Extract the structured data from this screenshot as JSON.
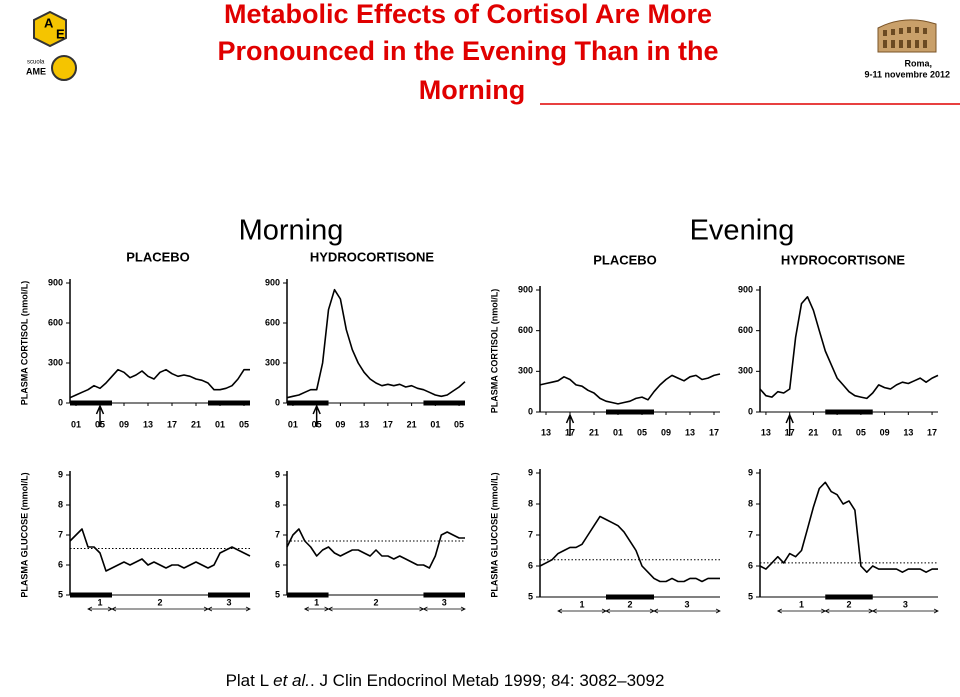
{
  "header": {
    "title_lines": [
      "Metabolic Effects of Cortisol Are More",
      "Pronounced in the Evening Than in the",
      "Morning"
    ],
    "logo": {
      "letters": [
        "A",
        "E"
      ],
      "school": "scuola",
      "brand": "AME"
    },
    "place": "Roma,",
    "date": "9-11 novembre 2012"
  },
  "panel_labels": [
    "Morning",
    "Evening"
  ],
  "citation": [
    "Plat L ",
    "et al.",
    ". J Clin Endocrinol Metab 1999; 84: 3082–3092"
  ],
  "chart_data": [
    {
      "type": "line",
      "title": "PLACEBO",
      "ylabel": "PLASMA CORTISOL (nmol/L)",
      "color": "#000000",
      "x": [
        -1,
        0,
        1,
        2,
        3,
        4,
        5,
        6,
        7,
        8,
        9,
        10,
        11,
        12,
        13,
        14,
        15,
        16,
        17,
        18,
        19,
        20,
        21,
        22,
        23,
        24,
        25,
        26,
        27,
        28,
        29
      ],
      "values": [
        40,
        60,
        80,
        100,
        130,
        110,
        150,
        200,
        250,
        230,
        190,
        210,
        240,
        200,
        180,
        230,
        250,
        220,
        200,
        210,
        200,
        180,
        170,
        150,
        100,
        100,
        110,
        130,
        180,
        250,
        250
      ],
      "xlim": [
        -1,
        29
      ],
      "ylim": [
        0,
        900
      ],
      "yticks": [
        0,
        300,
        600,
        900
      ],
      "xticks": [
        {
          "value": 0,
          "label": "01"
        },
        {
          "value": 4,
          "label": "05"
        },
        {
          "value": 8,
          "label": "09"
        },
        {
          "value": 12,
          "label": "13"
        },
        {
          "value": 16,
          "label": "17"
        },
        {
          "value": 20,
          "label": "21"
        },
        {
          "value": 24,
          "label": "01"
        },
        {
          "value": 28,
          "label": "05"
        }
      ],
      "sleep": [
        [
          -1,
          6
        ],
        [
          22,
          29
        ]
      ],
      "injection": 4
    },
    {
      "type": "line",
      "title": "HYDROCORTISONE",
      "color": "#000000",
      "x": [
        -1,
        0,
        1,
        2,
        3,
        4,
        5,
        6,
        7,
        8,
        9,
        10,
        11,
        12,
        13,
        14,
        15,
        16,
        17,
        18,
        19,
        20,
        21,
        22,
        23,
        24,
        25,
        26,
        27,
        28,
        29
      ],
      "values": [
        40,
        50,
        60,
        80,
        100,
        100,
        300,
        700,
        850,
        780,
        550,
        400,
        300,
        230,
        180,
        150,
        130,
        140,
        130,
        140,
        120,
        130,
        110,
        100,
        80,
        60,
        50,
        60,
        90,
        120,
        160
      ],
      "xlim": [
        -1,
        29
      ],
      "ylim": [
        0,
        900
      ],
      "yticks": [
        0,
        300,
        600,
        900
      ],
      "xticks": [
        {
          "value": 0,
          "label": "01"
        },
        {
          "value": 4,
          "label": "05"
        },
        {
          "value": 8,
          "label": "09"
        },
        {
          "value": 12,
          "label": "13"
        },
        {
          "value": 16,
          "label": "17"
        },
        {
          "value": 20,
          "label": "21"
        },
        {
          "value": 24,
          "label": "01"
        },
        {
          "value": 28,
          "label": "05"
        }
      ],
      "sleep": [
        [
          -1,
          6
        ],
        [
          22,
          29
        ]
      ],
      "injection": 4
    },
    {
      "type": "line",
      "title": "PLACEBO",
      "ylabel": "PLASMA CORTISOL (nmol/L)",
      "color": "#000000",
      "x": [
        -1,
        0,
        1,
        2,
        3,
        4,
        5,
        6,
        7,
        8,
        9,
        10,
        11,
        12,
        13,
        14,
        15,
        16,
        17,
        18,
        19,
        20,
        21,
        22,
        23,
        24,
        25,
        26,
        27,
        28,
        29
      ],
      "values": [
        200,
        210,
        220,
        230,
        260,
        240,
        200,
        190,
        160,
        140,
        100,
        80,
        70,
        60,
        70,
        80,
        100,
        110,
        90,
        150,
        200,
        240,
        270,
        250,
        230,
        260,
        270,
        240,
        250,
        270,
        280
      ],
      "xlim": [
        -1,
        29
      ],
      "ylim": [
        0,
        900
      ],
      "yticks": [
        0,
        300,
        600,
        900
      ],
      "xticks": [
        {
          "value": 0,
          "label": "13"
        },
        {
          "value": 4,
          "label": "17"
        },
        {
          "value": 8,
          "label": "21"
        },
        {
          "value": 12,
          "label": "01"
        },
        {
          "value": 16,
          "label": "05"
        },
        {
          "value": 20,
          "label": "09"
        },
        {
          "value": 24,
          "label": "13"
        },
        {
          "value": 28,
          "label": "17"
        }
      ],
      "sleep": [
        [
          10,
          18
        ]
      ],
      "injection": 4
    },
    {
      "type": "line",
      "title": "HYDROCORTISONE",
      "color": "#000000",
      "x": [
        -1,
        0,
        1,
        2,
        3,
        4,
        5,
        6,
        7,
        8,
        9,
        10,
        11,
        12,
        13,
        14,
        15,
        16,
        17,
        18,
        19,
        20,
        21,
        22,
        23,
        24,
        25,
        26,
        27,
        28,
        29
      ],
      "values": [
        170,
        120,
        110,
        150,
        140,
        170,
        550,
        800,
        850,
        750,
        600,
        450,
        350,
        250,
        200,
        150,
        120,
        110,
        100,
        140,
        200,
        180,
        170,
        200,
        220,
        210,
        230,
        250,
        220,
        250,
        270
      ],
      "xlim": [
        -1,
        29
      ],
      "ylim": [
        0,
        900
      ],
      "yticks": [
        0,
        300,
        600,
        900
      ],
      "xticks": [
        {
          "value": 0,
          "label": "13"
        },
        {
          "value": 4,
          "label": "17"
        },
        {
          "value": 8,
          "label": "21"
        },
        {
          "value": 12,
          "label": "01"
        },
        {
          "value": 16,
          "label": "05"
        },
        {
          "value": 20,
          "label": "09"
        },
        {
          "value": 24,
          "label": "13"
        },
        {
          "value": 28,
          "label": "17"
        }
      ],
      "sleep": [
        [
          10,
          18
        ]
      ],
      "injection": 4
    },
    {
      "type": "line",
      "ylabel": "PLASMA GLUCOSE (mmol/L)",
      "color": "#000000",
      "x": [
        -1,
        0,
        1,
        2,
        3,
        4,
        5,
        6,
        7,
        8,
        9,
        10,
        11,
        12,
        13,
        14,
        15,
        16,
        17,
        18,
        19,
        20,
        21,
        22,
        23,
        24,
        25,
        26,
        27,
        28,
        29
      ],
      "values": [
        6.8,
        7.0,
        7.2,
        6.6,
        6.6,
        6.4,
        5.8,
        5.9,
        6.0,
        6.1,
        6.0,
        6.1,
        6.2,
        6.0,
        6.1,
        6.0,
        5.9,
        6.0,
        6.0,
        5.9,
        6.0,
        6.1,
        6.0,
        5.9,
        6.0,
        6.4,
        6.5,
        6.6,
        6.5,
        6.4,
        6.3
      ],
      "xlim": [
        -1,
        29
      ],
      "ylim": [
        5,
        9
      ],
      "yticks": [
        5,
        6,
        7,
        8,
        9
      ],
      "reference": 6.55,
      "sleep": [
        [
          -1,
          6
        ],
        [
          22,
          29
        ]
      ],
      "periods": [
        {
          "label": "1",
          "range": [
            2,
            6
          ]
        },
        {
          "label": "2",
          "range": [
            6,
            22
          ]
        },
        {
          "label": "3",
          "range": [
            22,
            29
          ]
        }
      ]
    },
    {
      "type": "line",
      "color": "#000000",
      "x": [
        -1,
        0,
        1,
        2,
        3,
        4,
        5,
        6,
        7,
        8,
        9,
        10,
        11,
        12,
        13,
        14,
        15,
        16,
        17,
        18,
        19,
        20,
        21,
        22,
        23,
        24,
        25,
        26,
        27,
        28,
        29
      ],
      "values": [
        6.6,
        7.0,
        7.2,
        6.8,
        6.6,
        6.3,
        6.5,
        6.6,
        6.4,
        6.3,
        6.4,
        6.5,
        6.5,
        6.4,
        6.3,
        6.5,
        6.3,
        6.3,
        6.2,
        6.3,
        6.2,
        6.1,
        6.0,
        6.0,
        5.9,
        6.3,
        7.0,
        7.1,
        7.0,
        6.9,
        6.9
      ],
      "xlim": [
        -1,
        29
      ],
      "ylim": [
        5,
        9
      ],
      "yticks": [
        5,
        6,
        7,
        8,
        9
      ],
      "reference": 6.8,
      "sleep": [
        [
          -1,
          6
        ],
        [
          22,
          29
        ]
      ],
      "periods": [
        {
          "label": "1",
          "range": [
            2,
            6
          ]
        },
        {
          "label": "2",
          "range": [
            6,
            22
          ]
        },
        {
          "label": "3",
          "range": [
            22,
            29
          ]
        }
      ]
    },
    {
      "type": "line",
      "ylabel": "PLASMA GLUCOSE (mmol/L)",
      "color": "#000000",
      "x": [
        -1,
        0,
        1,
        2,
        3,
        4,
        5,
        6,
        7,
        8,
        9,
        10,
        11,
        12,
        13,
        14,
        15,
        16,
        17,
        18,
        19,
        20,
        21,
        22,
        23,
        24,
        25,
        26,
        27,
        28,
        29
      ],
      "values": [
        6.0,
        6.1,
        6.2,
        6.4,
        6.5,
        6.6,
        6.6,
        6.7,
        7.0,
        7.3,
        7.6,
        7.5,
        7.4,
        7.3,
        7.1,
        6.8,
        6.5,
        6.0,
        5.8,
        5.6,
        5.5,
        5.5,
        5.6,
        5.5,
        5.5,
        5.6,
        5.6,
        5.5,
        5.6,
        5.6,
        5.6
      ],
      "xlim": [
        -1,
        29
      ],
      "ylim": [
        5,
        9
      ],
      "yticks": [
        5,
        6,
        7,
        8,
        9
      ],
      "reference": 6.2,
      "sleep": [
        [
          10,
          18
        ]
      ],
      "periods": [
        {
          "label": "1",
          "range": [
            2,
            10
          ]
        },
        {
          "label": "2",
          "range": [
            10,
            18
          ]
        },
        {
          "label": "3",
          "range": [
            18,
            29
          ]
        }
      ]
    },
    {
      "type": "line",
      "color": "#000000",
      "x": [
        -1,
        0,
        1,
        2,
        3,
        4,
        5,
        6,
        7,
        8,
        9,
        10,
        11,
        12,
        13,
        14,
        15,
        16,
        17,
        18,
        19,
        20,
        21,
        22,
        23,
        24,
        25,
        26,
        27,
        28,
        29
      ],
      "values": [
        6.0,
        5.9,
        6.1,
        6.3,
        6.1,
        6.4,
        6.3,
        6.5,
        7.2,
        7.9,
        8.5,
        8.7,
        8.4,
        8.3,
        8.0,
        8.1,
        7.8,
        6.0,
        5.8,
        6.0,
        5.9,
        5.9,
        5.9,
        5.9,
        5.8,
        5.9,
        5.9,
        5.9,
        5.8,
        5.9,
        5.9
      ],
      "xlim": [
        -1,
        29
      ],
      "ylim": [
        5,
        9
      ],
      "yticks": [
        5,
        6,
        7,
        8,
        9
      ],
      "reference": 6.1,
      "sleep": [
        [
          10,
          18
        ]
      ],
      "periods": [
        {
          "label": "1",
          "range": [
            2,
            10
          ]
        },
        {
          "label": "2",
          "range": [
            10,
            18
          ]
        },
        {
          "label": "3",
          "range": [
            18,
            29
          ]
        }
      ]
    }
  ]
}
